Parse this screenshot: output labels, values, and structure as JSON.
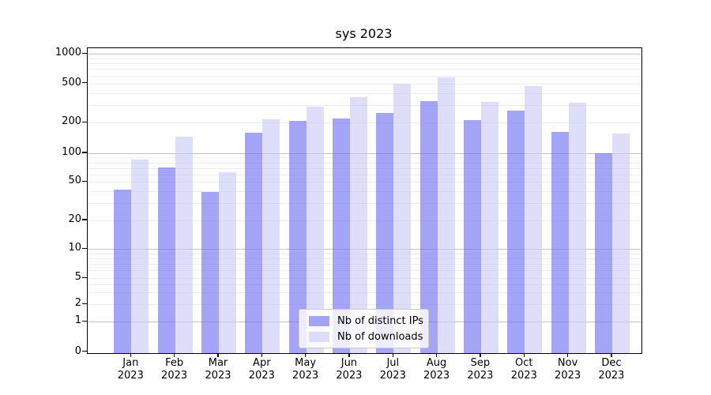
{
  "title": "sys 2023",
  "chart_data": {
    "type": "bar",
    "title": "sys 2023",
    "categories": [
      "Jan 2023",
      "Feb 2023",
      "Mar 2023",
      "Apr 2023",
      "May 2023",
      "Jun 2023",
      "Jul 2023",
      "Aug 2023",
      "Sep 2023",
      "Oct 2023",
      "Nov 2023",
      "Dec 2023"
    ],
    "series": [
      {
        "name": "Nb of distinct IPs",
        "color": "#6e6ef2",
        "values": [
          42,
          71,
          39,
          160,
          207,
          220,
          250,
          333,
          212,
          262,
          162,
          100
        ]
      },
      {
        "name": "Nb of downloads",
        "color": "#c8c8f8",
        "values": [
          85,
          145,
          63,
          217,
          292,
          365,
          500,
          572,
          322,
          465,
          320,
          155
        ]
      }
    ],
    "yscale": "symlog",
    "yticks": [
      0,
      1,
      2,
      5,
      10,
      20,
      50,
      100,
      200,
      500,
      1000
    ],
    "ylim": [
      0,
      1100
    ],
    "xlabel": "",
    "ylabel": "",
    "grid": true,
    "legend_position": "lower center",
    "background": "#ffffff",
    "gridline_major_color": "#c3c3c3",
    "gridline_minor_color": "#ececec"
  },
  "legend": {
    "items": [
      {
        "label": "Nb of distinct IPs"
      },
      {
        "label": "Nb of downloads"
      }
    ]
  }
}
